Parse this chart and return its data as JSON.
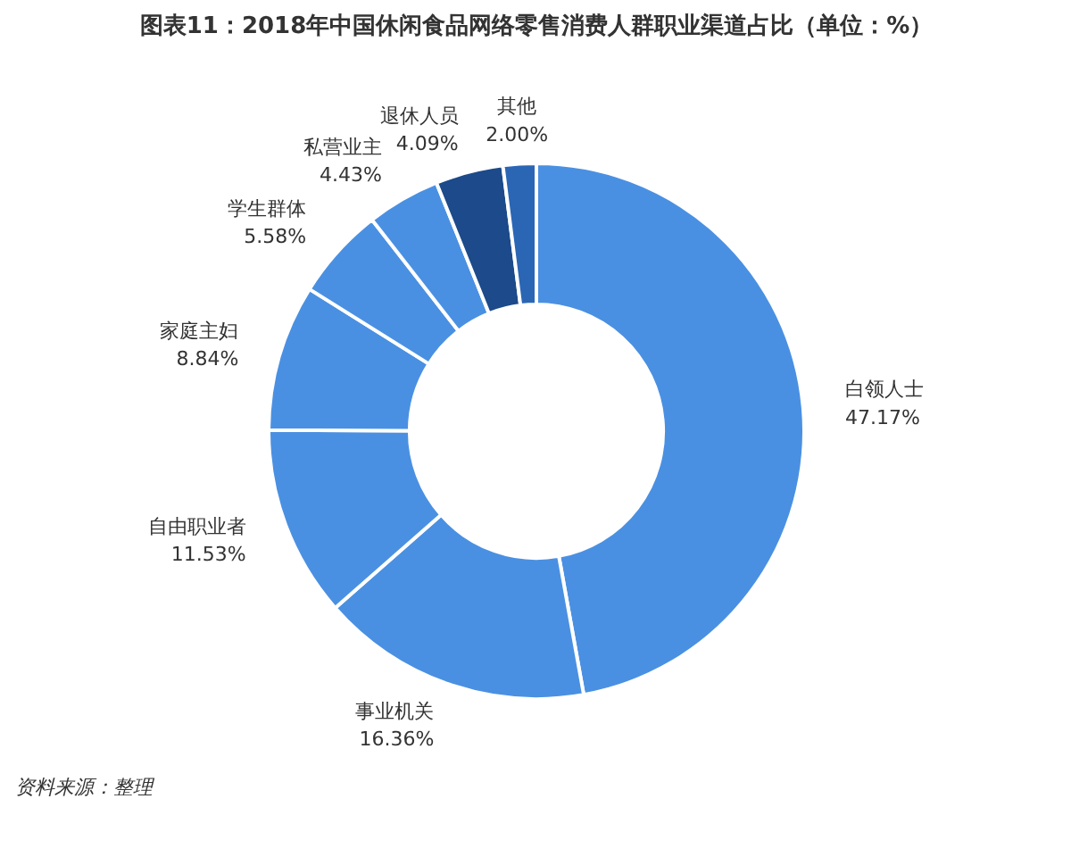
{
  "chart_data": {
    "type": "donut",
    "title": "图表11：2018年中国休闲食品网络零售消费人群职业渠道占比（单位：%）",
    "categories": [
      "白领人士",
      "事业机关",
      "自由职业者",
      "家庭主妇",
      "学生群体",
      "私营业主",
      "退休人员",
      "其他"
    ],
    "values": [
      47.17,
      16.36,
      11.53,
      8.84,
      5.58,
      4.43,
      4.09,
      2.0
    ],
    "value_labels": [
      "47.17%",
      "16.36%",
      "11.53%",
      "8.84%",
      "5.58%",
      "4.43%",
      "4.09%",
      "2.00%"
    ],
    "colors": [
      "#4a90e2",
      "#4a90e2",
      "#4a90e2",
      "#4a90e2",
      "#4a90e2",
      "#4a90e2",
      "#1c4a8a",
      "#2b66b5"
    ],
    "annotations": [
      "资料来源：整理"
    ]
  }
}
